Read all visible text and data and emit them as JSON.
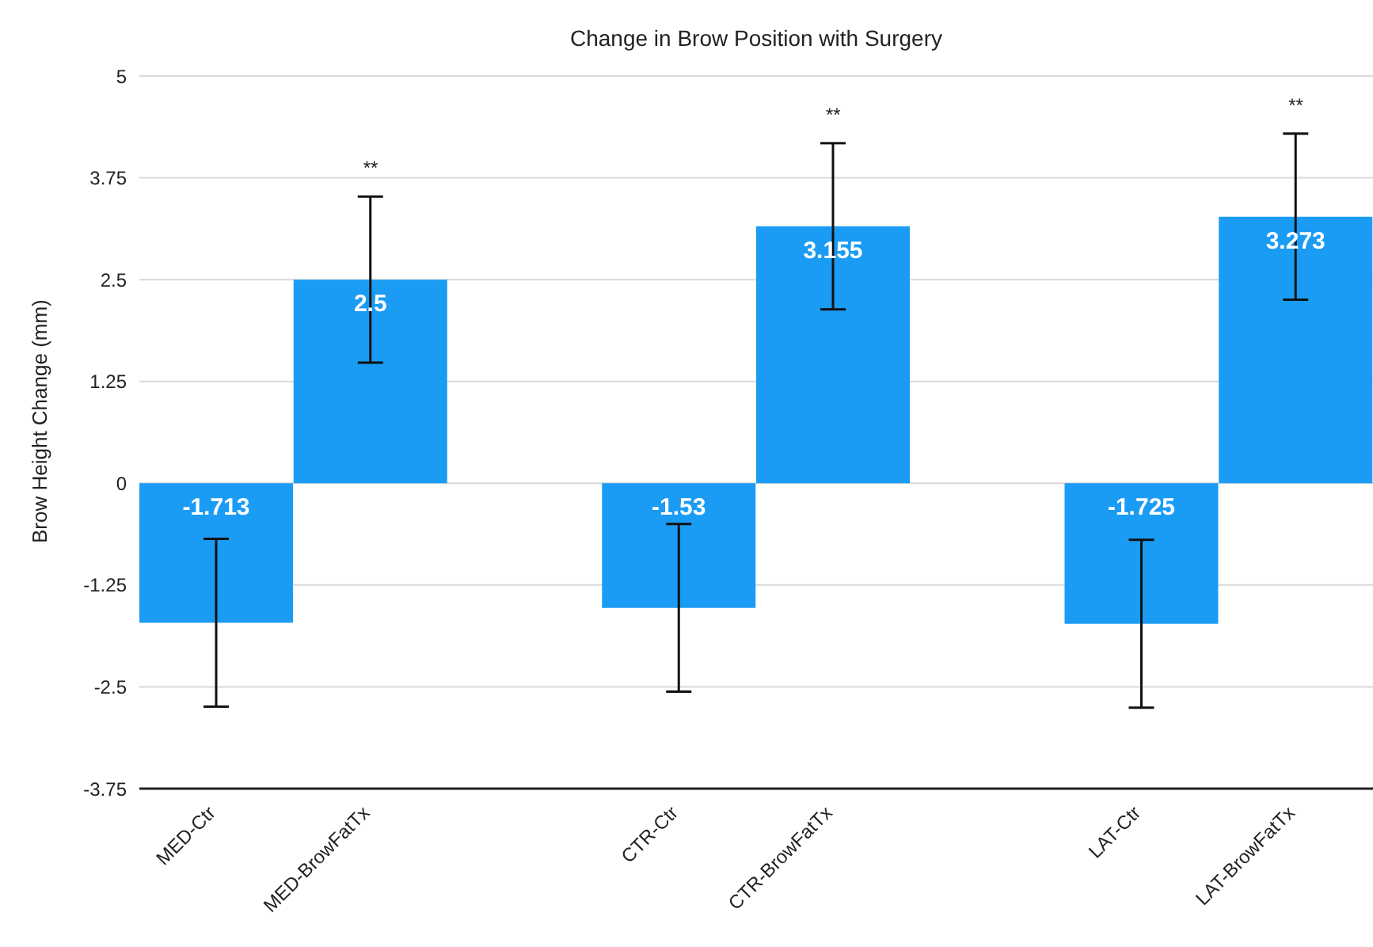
{
  "chart_data": {
    "type": "bar",
    "title": "Change in Brow Position with Surgery",
    "ylabel": "Brow Height Change (mm)",
    "categories": [
      "MED-Ctr",
      "MED-BrowFatTx",
      null,
      "CTR-Ctr",
      "CTR-BrowFatTx",
      null,
      "LAT-Ctr",
      "LAT-BrowFatTx"
    ],
    "values": [
      -1.713,
      2.5,
      null,
      -1.53,
      3.155,
      null,
      -1.725,
      3.273
    ],
    "errors": [
      1.03,
      1.02,
      null,
      1.03,
      1.02,
      null,
      1.03,
      1.02
    ],
    "color": "#1a9cf5",
    "data_labels": true,
    "ylim": [
      -3.75,
      5
    ],
    "yticks": [
      -3.75,
      -2.5,
      -1.25,
      0,
      1.25,
      2.5,
      3.75,
      5
    ],
    "grid": "y",
    "annotations": [
      "**",
      "**",
      "**"
    ]
  }
}
